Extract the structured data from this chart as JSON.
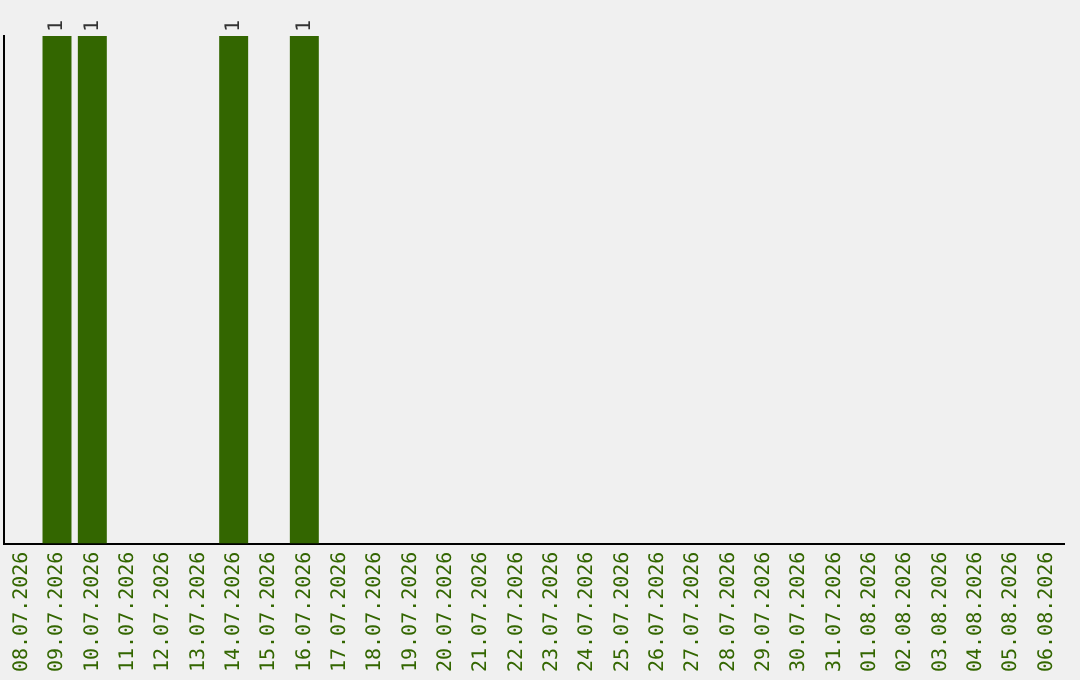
{
  "chart_data": {
    "type": "bar",
    "categories": [
      "08.07.2026",
      "09.07.2026",
      "10.07.2026",
      "11.07.2026",
      "12.07.2026",
      "13.07.2026",
      "14.07.2026",
      "15.07.2026",
      "16.07.2026",
      "17.07.2026",
      "18.07.2026",
      "19.07.2026",
      "20.07.2026",
      "21.07.2026",
      "22.07.2026",
      "23.07.2026",
      "24.07.2026",
      "25.07.2026",
      "26.07.2026",
      "27.07.2026",
      "28.07.2026",
      "29.07.2026",
      "30.07.2026",
      "31.07.2026",
      "01.08.2026",
      "02.08.2026",
      "03.08.2026",
      "04.08.2026",
      "05.08.2026",
      "06.08.2026"
    ],
    "values": [
      0,
      1,
      1,
      0,
      0,
      0,
      1,
      0,
      1,
      0,
      0,
      0,
      0,
      0,
      0,
      0,
      0,
      0,
      0,
      0,
      0,
      0,
      0,
      0,
      0,
      0,
      0,
      0,
      0,
      0
    ],
    "value_labels": [
      null,
      "1",
      "1",
      null,
      null,
      null,
      "1",
      null,
      "1",
      null,
      null,
      null,
      null,
      null,
      null,
      null,
      null,
      null,
      null,
      null,
      null,
      null,
      null,
      null,
      null,
      null,
      null,
      null,
      null,
      null
    ],
    "color": "#336600",
    "grid": false,
    "legend": false,
    "tick_labels": "x"
  }
}
